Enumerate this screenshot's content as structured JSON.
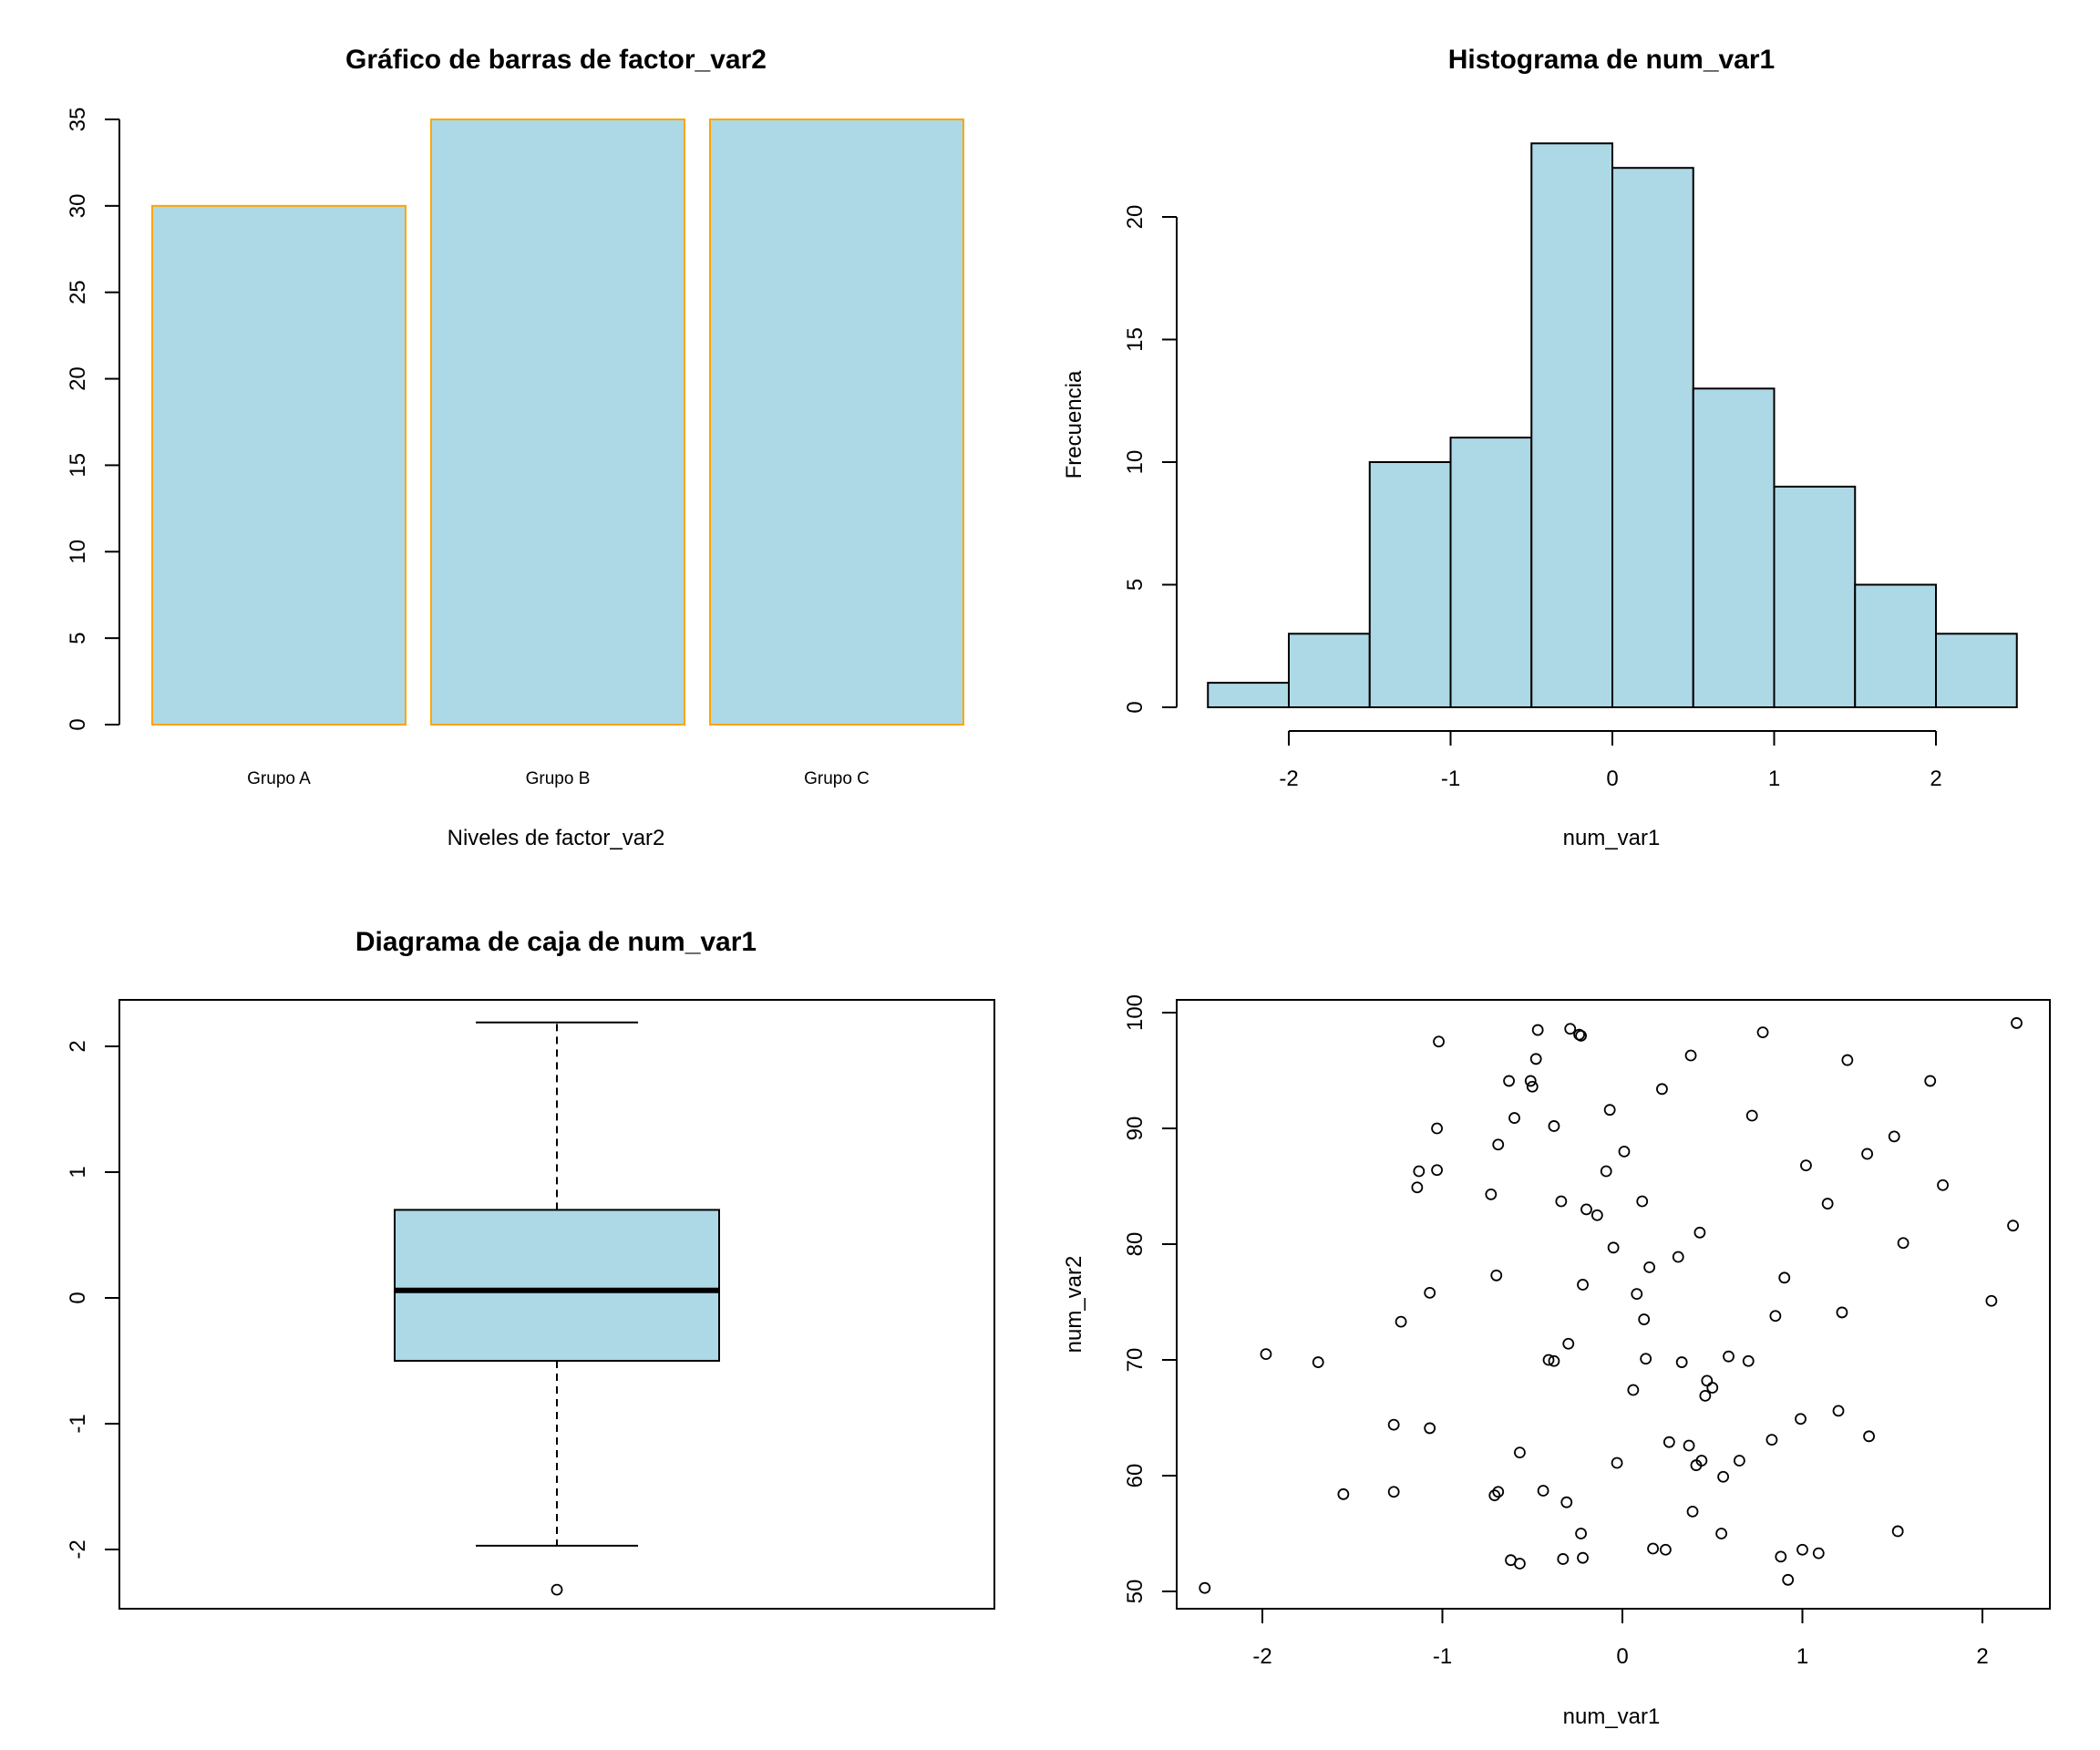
{
  "chart_data": [
    {
      "type": "bar",
      "title": "Gráfico de barras de factor_var2",
      "xlabel": "Niveles de factor_var2",
      "ylabel": "",
      "categories": [
        "Grupo A",
        "Grupo B",
        "Grupo C"
      ],
      "values": [
        30,
        35,
        35
      ],
      "ylim": [
        0,
        35
      ],
      "yticks": [
        0,
        5,
        10,
        15,
        20,
        25,
        30,
        35
      ],
      "fill_color": "#add8e6",
      "border_color": "#ffa500",
      "grid": false
    },
    {
      "type": "bar",
      "subtype": "histogram",
      "title": "Histograma de num_var1",
      "xlabel": "num_var1",
      "ylabel": "Frecuencia",
      "bin_edges": [
        -2.5,
        -2,
        -1.5,
        -1,
        -0.5,
        0,
        0.5,
        1,
        1.5,
        2,
        2.5
      ],
      "values": [
        1,
        3,
        10,
        11,
        23,
        22,
        13,
        9,
        5,
        3
      ],
      "xticks": [
        -2,
        -1,
        0,
        1,
        2
      ],
      "yticks": [
        0,
        5,
        10,
        15,
        20
      ],
      "fill_color": "#add8e6",
      "border_color": "#000000",
      "grid": false
    },
    {
      "type": "box",
      "title": "Diagrama de caja de num_var1",
      "min_whisker": -1.97,
      "q1": -0.5,
      "median": 0.06,
      "q3": 0.7,
      "max_whisker": 2.19,
      "outliers": [
        -2.32
      ],
      "ylim": [
        -2.32,
        2.19
      ],
      "yticks": [
        -2,
        -1,
        0,
        1,
        2
      ],
      "fill_color": "#add8e6",
      "grid": false
    },
    {
      "type": "scatter",
      "title": "",
      "xlabel": "num_var1",
      "ylabel": "num_var2",
      "xlim": [
        -2.32,
        2.19
      ],
      "ylim": [
        50.3,
        99.1
      ],
      "xticks": [
        -2,
        -1,
        0,
        1,
        2
      ],
      "yticks": [
        50,
        60,
        70,
        80,
        90,
        100
      ],
      "grid": false,
      "points": [
        [
          -2.32,
          50.3
        ],
        [
          -1.98,
          70.5
        ],
        [
          -1.69,
          69.8
        ],
        [
          -1.55,
          58.4
        ],
        [
          -1.27,
          64.4
        ],
        [
          -1.27,
          58.6
        ],
        [
          -1.23,
          73.3
        ],
        [
          -1.14,
          84.9
        ],
        [
          -1.13,
          86.3
        ],
        [
          -1.07,
          75.8
        ],
        [
          -1.07,
          64.1
        ],
        [
          -1.03,
          86.4
        ],
        [
          -1.03,
          90.0
        ],
        [
          -1.02,
          97.5
        ],
        [
          -0.73,
          84.3
        ],
        [
          -0.71,
          58.3
        ],
        [
          -0.7,
          77.3
        ],
        [
          -0.69,
          58.6
        ],
        [
          -0.69,
          88.6
        ],
        [
          -0.63,
          94.1
        ],
        [
          -0.62,
          52.7
        ],
        [
          -0.6,
          90.9
        ],
        [
          -0.57,
          52.4
        ],
        [
          -0.57,
          62.0
        ],
        [
          -0.51,
          94.1
        ],
        [
          -0.5,
          93.6
        ],
        [
          -0.48,
          96.0
        ],
        [
          -0.47,
          98.5
        ],
        [
          -0.44,
          58.7
        ],
        [
          -0.41,
          70.0
        ],
        [
          -0.38,
          69.9
        ],
        [
          -0.38,
          90.2
        ],
        [
          -0.34,
          83.7
        ],
        [
          -0.33,
          52.8
        ],
        [
          -0.31,
          57.7
        ],
        [
          -0.3,
          71.4
        ],
        [
          -0.29,
          98.6
        ],
        [
          -0.24,
          98.1
        ],
        [
          -0.23,
          98.0
        ],
        [
          -0.23,
          55.0
        ],
        [
          -0.22,
          52.9
        ],
        [
          -0.22,
          76.5
        ],
        [
          -0.2,
          83.0
        ],
        [
          -0.14,
          82.5
        ],
        [
          -0.09,
          86.3
        ],
        [
          -0.07,
          91.6
        ],
        [
          -0.05,
          79.7
        ],
        [
          -0.03,
          61.1
        ],
        [
          0.01,
          88.0
        ],
        [
          0.06,
          67.4
        ],
        [
          0.08,
          75.7
        ],
        [
          0.11,
          83.7
        ],
        [
          0.12,
          73.5
        ],
        [
          0.13,
          70.1
        ],
        [
          0.15,
          78.0
        ],
        [
          0.17,
          53.7
        ],
        [
          0.22,
          93.4
        ],
        [
          0.24,
          53.6
        ],
        [
          0.26,
          62.9
        ],
        [
          0.31,
          78.9
        ],
        [
          0.33,
          69.8
        ],
        [
          0.37,
          62.6
        ],
        [
          0.38,
          96.3
        ],
        [
          0.39,
          56.9
        ],
        [
          0.41,
          60.9
        ],
        [
          0.43,
          81.0
        ],
        [
          0.44,
          61.3
        ],
        [
          0.46,
          66.9
        ],
        [
          0.47,
          68.2
        ],
        [
          0.5,
          67.6
        ],
        [
          0.55,
          55.0
        ],
        [
          0.56,
          59.9
        ],
        [
          0.59,
          70.3
        ],
        [
          0.65,
          61.3
        ],
        [
          0.7,
          69.9
        ],
        [
          0.72,
          91.1
        ],
        [
          0.78,
          98.3
        ],
        [
          0.83,
          63.1
        ],
        [
          0.85,
          73.8
        ],
        [
          0.88,
          53.0
        ],
        [
          0.9,
          77.1
        ],
        [
          0.92,
          51.0
        ],
        [
          0.99,
          64.9
        ],
        [
          1.0,
          53.6
        ],
        [
          1.02,
          86.8
        ],
        [
          1.09,
          53.3
        ],
        [
          1.14,
          83.5
        ],
        [
          1.2,
          65.6
        ],
        [
          1.22,
          74.1
        ],
        [
          1.25,
          95.9
        ],
        [
          1.36,
          87.8
        ],
        [
          1.37,
          63.4
        ],
        [
          1.51,
          89.3
        ],
        [
          1.53,
          55.2
        ],
        [
          1.56,
          80.1
        ],
        [
          1.71,
          94.1
        ],
        [
          1.78,
          85.1
        ],
        [
          2.05,
          75.1
        ],
        [
          2.17,
          81.6
        ],
        [
          2.19,
          99.1
        ]
      ]
    }
  ]
}
